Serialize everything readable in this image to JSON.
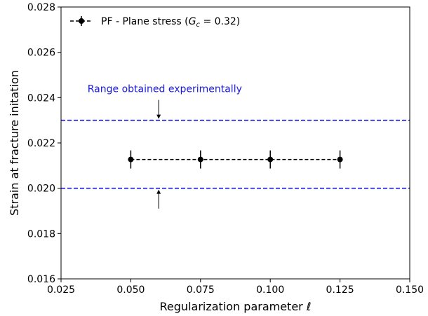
{
  "chart_data": {
    "type": "scatter",
    "xlabel": "Regularization parameter ℓ",
    "ylabel": "Strain at fracture initation",
    "xlim": [
      0.025,
      0.15
    ],
    "ylim": [
      0.016,
      0.028
    ],
    "x_ticks": [
      0.025,
      0.05,
      0.075,
      0.1,
      0.125,
      0.15
    ],
    "x_tick_labels": [
      "0.025",
      "0.050",
      "0.075",
      "0.100",
      "0.125",
      "0.150"
    ],
    "y_ticks": [
      0.016,
      0.018,
      0.02,
      0.022,
      0.024,
      0.026,
      0.028
    ],
    "y_tick_labels": [
      "0.016",
      "0.018",
      "0.020",
      "0.022",
      "0.024",
      "0.026",
      "0.028"
    ],
    "grid": false,
    "legend_position": "top-left",
    "series": [
      {
        "name": "PF - Plane stress (Gc = 0.32)",
        "legend_prefix": "PF - Plane stress (",
        "legend_var": "G",
        "legend_sub": "c",
        "legend_suffix": " = 0.32)",
        "color": "#000000",
        "line_style": "dashed",
        "x": [
          0.05,
          0.075,
          0.1,
          0.125
        ],
        "y": [
          0.02127,
          0.02127,
          0.02127,
          0.02127
        ],
        "y_error": [
          0.0004,
          0.0004,
          0.0004,
          0.0004
        ]
      }
    ],
    "reference_lines": [
      {
        "y": 0.023,
        "color": "#1a1adc",
        "style": "dashed"
      },
      {
        "y": 0.02,
        "color": "#1a1adc",
        "style": "dashed"
      }
    ],
    "annotations": [
      {
        "text": "Range obtained experimentally",
        "x": 0.0345,
        "y": 0.02425,
        "color": "#1a1adc"
      }
    ],
    "arrows": [
      {
        "x": 0.06,
        "y_from": 0.0239,
        "y_to": 0.023
      },
      {
        "x": 0.06,
        "y_from": 0.0191,
        "y_to": 0.02
      }
    ]
  }
}
